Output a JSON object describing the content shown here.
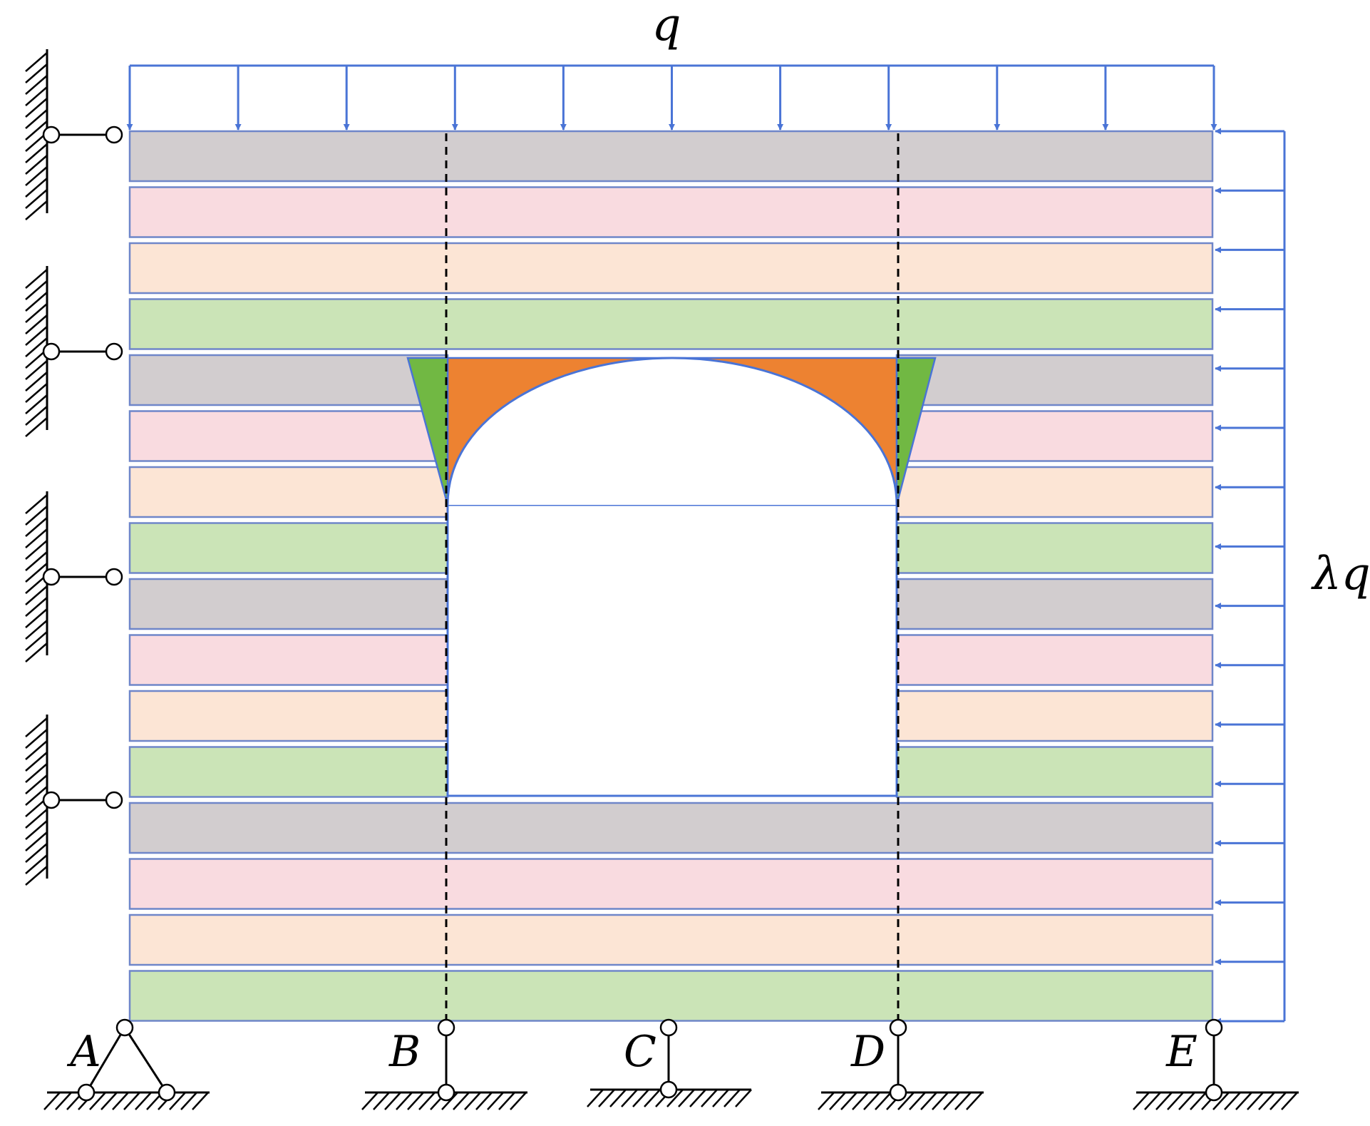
{
  "labels": {
    "vertical_load": "q",
    "lateral_load": "λq",
    "supports": [
      "A",
      "B",
      "C",
      "D",
      "E"
    ]
  },
  "layer_colors": [
    "#d2cdcf",
    "#f9dbe0",
    "#fce5d5",
    "#cbe4b7"
  ],
  "colors": {
    "load_arrow": "#4a74d6",
    "layer_border": "#6f86c9",
    "arch_fill": "#ed8231",
    "wedge_fill": "#71b843",
    "opening_fill": "#ffffff"
  },
  "structure": {
    "layer_count": 16,
    "opening_layers": [
      4,
      11
    ],
    "left_wall_supports": 4,
    "vertical_load_arrows": 11,
    "lateral_load_arrows": 16
  }
}
